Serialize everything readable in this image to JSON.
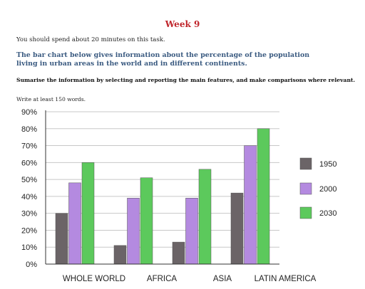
{
  "header": {
    "week": "Week 9",
    "instruction": "You should spend about 20 minutes on this task.",
    "description": "The bar chart below gives information about the percentage of the population living in urban areas in the world and in different continents.",
    "summarise": "Sumarise the information by selecting and reporting the main features, and make comparisons where relevant.",
    "write": "Write at least 150 words."
  },
  "colors": {
    "1950": "#6b6467",
    "2000": "#b48ae0",
    "2030": "#5cc95c",
    "grid": "#c8c8c8",
    "axis": "#333333"
  },
  "chart_data": {
    "type": "bar",
    "categories": [
      "WHOLE WORLD",
      "AFRICA",
      "ASIA",
      "LATIN AMERICA"
    ],
    "series": [
      {
        "name": "1950",
        "values": [
          30,
          11,
          13,
          42
        ]
      },
      {
        "name": "2000",
        "values": [
          48,
          39,
          39,
          70
        ]
      },
      {
        "name": "2030",
        "values": [
          60,
          51,
          56,
          80
        ]
      }
    ],
    "ylim": [
      0,
      90
    ],
    "yticks": [
      "0%",
      "10%",
      "20%",
      "30%",
      "40%",
      "50%",
      "60%",
      "70%",
      "80%",
      "90%"
    ],
    "grid": true,
    "legend": "right"
  }
}
